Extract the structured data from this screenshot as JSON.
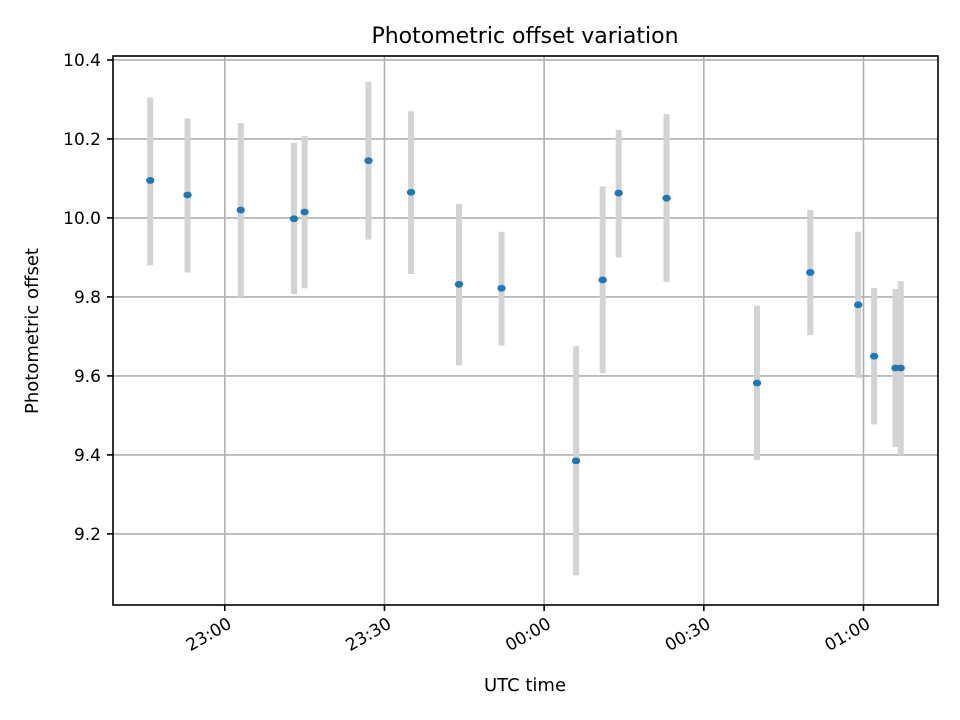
{
  "chart_data": {
    "type": "scatter",
    "title": "Photometric offset variation",
    "xlabel": "UTC time",
    "ylabel": "Photometric offset",
    "x_axis_type": "time",
    "xlim": [
      "22:39",
      "01:14"
    ],
    "ylim": [
      9.02,
      10.41
    ],
    "x_ticks": [
      "23:00",
      "23:30",
      "00:00",
      "00:30",
      "01:00"
    ],
    "y_ticks": [
      "9.2",
      "9.4",
      "9.6",
      "9.8",
      "10.0",
      "10.2",
      "10.4"
    ],
    "grid": true,
    "series": [
      {
        "marker_color": "#1f77b4",
        "errorbar_color": "#d3d3d3",
        "points": [
          {
            "x": "22:46",
            "y": 10.095,
            "err_low": 9.88,
            "err_high": 10.305
          },
          {
            "x": "22:53",
            "y": 10.058,
            "err_low": 9.862,
            "err_high": 10.252
          },
          {
            "x": "23:03",
            "y": 10.02,
            "err_low": 9.8,
            "err_high": 10.24
          },
          {
            "x": "23:13",
            "y": 9.998,
            "err_low": 9.807,
            "err_high": 10.19
          },
          {
            "x": "23:15",
            "y": 10.015,
            "err_low": 9.822,
            "err_high": 10.207
          },
          {
            "x": "23:27",
            "y": 10.145,
            "err_low": 9.945,
            "err_high": 10.345
          },
          {
            "x": "23:35",
            "y": 10.065,
            "err_low": 9.858,
            "err_high": 10.27
          },
          {
            "x": "23:44",
            "y": 9.832,
            "err_low": 9.627,
            "err_high": 10.035
          },
          {
            "x": "23:52",
            "y": 9.822,
            "err_low": 9.677,
            "err_high": 9.965
          },
          {
            "x": "00:06",
            "y": 9.385,
            "err_low": 9.095,
            "err_high": 9.675
          },
          {
            "x": "00:11",
            "y": 9.843,
            "err_low": 9.607,
            "err_high": 10.08
          },
          {
            "x": "00:14",
            "y": 10.063,
            "err_low": 9.9,
            "err_high": 10.223
          },
          {
            "x": "00:23",
            "y": 10.05,
            "err_low": 9.838,
            "err_high": 10.263
          },
          {
            "x": "00:40",
            "y": 9.582,
            "err_low": 9.387,
            "err_high": 9.778
          },
          {
            "x": "00:50",
            "y": 9.862,
            "err_low": 9.703,
            "err_high": 10.02
          },
          {
            "x": "00:59",
            "y": 9.78,
            "err_low": 9.595,
            "err_high": 9.965
          },
          {
            "x": "01:02",
            "y": 9.65,
            "err_low": 9.477,
            "err_high": 9.823
          },
          {
            "x": "01:06",
            "y": 9.62,
            "err_low": 9.42,
            "err_high": 9.82
          },
          {
            "x": "01:07",
            "y": 9.62,
            "err_low": 9.4,
            "err_high": 9.84
          }
        ]
      }
    ]
  }
}
